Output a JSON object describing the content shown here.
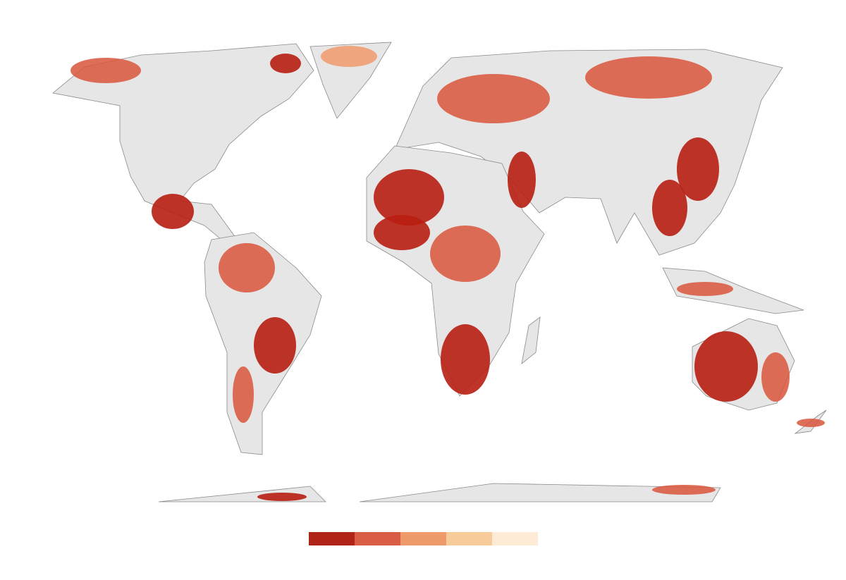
{
  "legend": {
    "colors": [
      "#b02418",
      "#d95c44",
      "#ee9a6b",
      "#f8cb9a",
      "#fdebd6"
    ]
  }
}
